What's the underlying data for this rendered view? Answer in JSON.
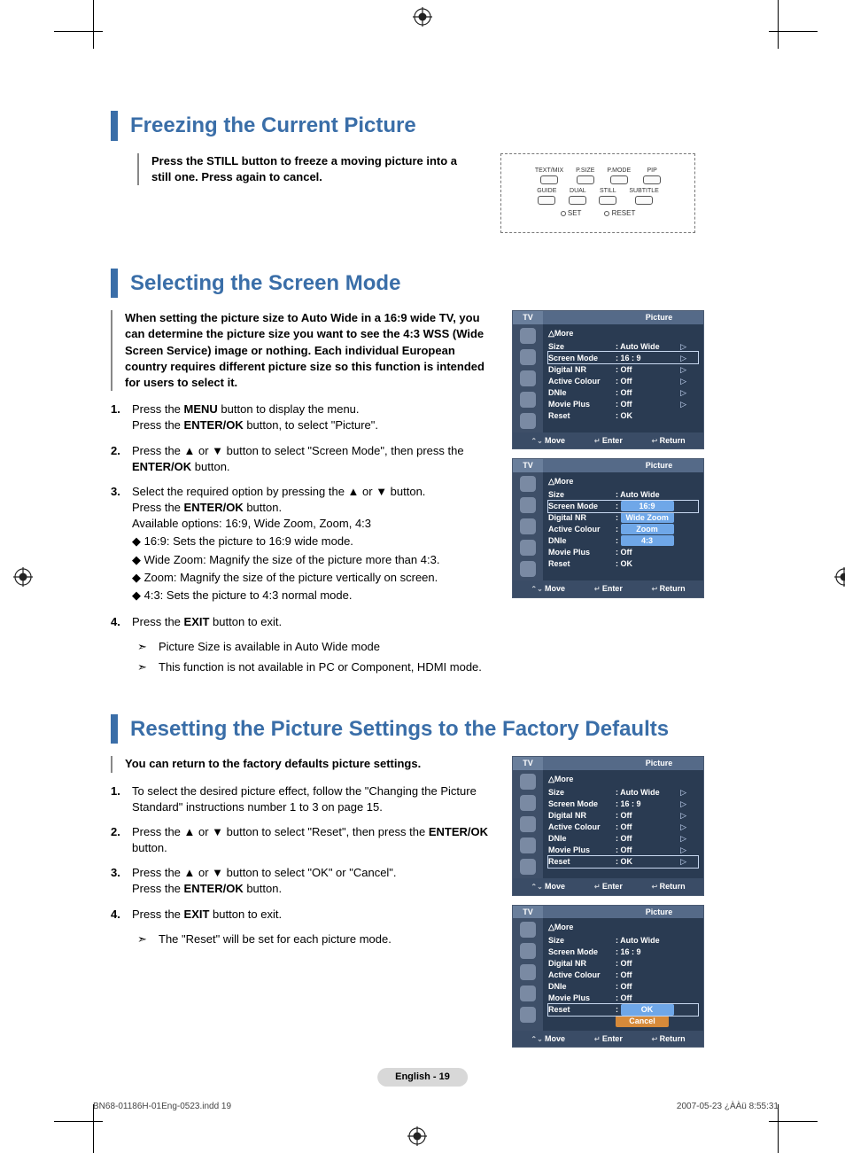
{
  "meta": {
    "page_label": "English - 19",
    "foot_left": "BN68-01186H-01Eng-0523.indd   19",
    "foot_right": "2007-05-23   ¿ÀÀü 8:55:31"
  },
  "remote": {
    "row1": [
      "TEXT/MIX",
      "P.SIZE",
      "P.MODE",
      "PIP"
    ],
    "row2": [
      "GUIDE",
      "DUAL",
      "STILL",
      "SUBTITLE"
    ],
    "row3_left": "SET",
    "row3_right": "RESET"
  },
  "section1": {
    "title": "Freezing the Current Picture",
    "intro": "Press the STILL button to freeze a moving picture into a still one. Press again to cancel."
  },
  "section2": {
    "title": "Selecting the Screen Mode",
    "intro": "When setting the picture size to Auto Wide in a 16:9 wide TV, you can determine the picture size you want to see the 4:3 WSS (Wide Screen Service) image or nothing. Each individual European country requires different picture size so this function is intended for users to select it.",
    "steps": [
      {
        "num": "1.",
        "lines": [
          "Press the <b>MENU</b> button to display the menu.",
          "Press the <b>ENTER/OK</b> button, to select \"Picture\"."
        ]
      },
      {
        "num": "2.",
        "lines": [
          "Press the ▲ or ▼ button to select \"Screen Mode\", then press the <b>ENTER/OK</b> button."
        ]
      },
      {
        "num": "3.",
        "lines": [
          "Select the required option by pressing the ▲ or ▼ button.",
          "Press the <b>ENTER/OK</b> button.",
          "Available options: 16:9, Wide Zoom, Zoom, 4:3"
        ],
        "subs": [
          "16:9: Sets the picture to 16:9 wide mode.",
          "Wide Zoom: Magnify the size of the picture more than 4:3.",
          "Zoom: Magnify the size of the picture vertically on screen.",
          "4:3: Sets the picture to 4:3 normal mode."
        ]
      },
      {
        "num": "4.",
        "lines": [
          "Press the <b>EXIT</b> button to exit."
        ]
      }
    ],
    "notes": [
      "Picture Size is available in Auto Wide mode",
      "This function is not available in PC or Component, HDMI mode."
    ]
  },
  "section3": {
    "title": "Resetting the Picture Settings to the Factory Defaults",
    "intro": "You can return to the factory defaults picture settings.",
    "steps": [
      {
        "num": "1.",
        "lines": [
          "To select the desired picture effect, follow the \"Changing the Picture Standard\" instructions number 1 to 3 on page 15."
        ]
      },
      {
        "num": "2.",
        "lines": [
          "Press the ▲ or ▼ button to select \"Reset\", then press the <b>ENTER/OK</b> button."
        ]
      },
      {
        "num": "3.",
        "lines": [
          "Press the ▲ or ▼ button to select \"OK\" or \"Cancel\".",
          "Press the <b>ENTER/OK</b> button."
        ]
      },
      {
        "num": "4.",
        "lines": [
          "Press the <b>EXIT</b> button to exit."
        ]
      }
    ],
    "notes": [
      "The \"Reset\" will be set for each picture mode."
    ]
  },
  "osd_common": {
    "tv": "TV",
    "title": "Picture",
    "more": "△More",
    "foot_move": "Move",
    "foot_enter": "Enter",
    "foot_return": "Return"
  },
  "osd1": {
    "rows": [
      {
        "lbl": "Size",
        "val": ": Auto Wide",
        "arr": true
      },
      {
        "lbl": "Screen Mode",
        "val": ": 16 : 9",
        "arr": true,
        "sel": true
      },
      {
        "lbl": "Digital NR",
        "val": ": Off",
        "arr": true
      },
      {
        "lbl": "Active Colour",
        "val": ": Off",
        "arr": true
      },
      {
        "lbl": "DNIe",
        "val": ": Off",
        "arr": true
      },
      {
        "lbl": "Movie Plus",
        "val": ": Off",
        "arr": true
      },
      {
        "lbl": "Reset",
        "val": ": OK"
      }
    ]
  },
  "osd2": {
    "rows": [
      {
        "lbl": "Size",
        "val": ": Auto Wide"
      },
      {
        "lbl": "Screen Mode",
        "val": ":",
        "hl": "16:9",
        "sel": true
      },
      {
        "lbl": "Digital NR",
        "val": ":",
        "hl": "Wide Zoom"
      },
      {
        "lbl": "Active Colour",
        "val": ":",
        "hl": "Zoom"
      },
      {
        "lbl": "DNIe",
        "val": ":",
        "hl": "4:3"
      },
      {
        "lbl": "Movie Plus",
        "val": ": Off"
      },
      {
        "lbl": "Reset",
        "val": ": OK"
      }
    ]
  },
  "osd3": {
    "rows": [
      {
        "lbl": "Size",
        "val": ": Auto Wide",
        "arr": true
      },
      {
        "lbl": "Screen Mode",
        "val": ": 16 : 9",
        "arr": true
      },
      {
        "lbl": "Digital NR",
        "val": ": Off",
        "arr": true
      },
      {
        "lbl": "Active Colour",
        "val": ": Off",
        "arr": true
      },
      {
        "lbl": "DNIe",
        "val": ": Off",
        "arr": true
      },
      {
        "lbl": "Movie Plus",
        "val": ": Off",
        "arr": true
      },
      {
        "lbl": "Reset",
        "val": ": OK",
        "arr": true,
        "sel": true
      }
    ]
  },
  "osd4": {
    "rows": [
      {
        "lbl": "Size",
        "val": ": Auto Wide"
      },
      {
        "lbl": "Screen Mode",
        "val": ": 16 : 9"
      },
      {
        "lbl": "Digital NR",
        "val": ": Off"
      },
      {
        "lbl": "Active Colour",
        "val": ": Off"
      },
      {
        "lbl": "DNIe",
        "val": ": Off"
      },
      {
        "lbl": "Movie Plus",
        "val": ": Off"
      },
      {
        "lbl": "Reset",
        "val": ":",
        "hl": "OK",
        "sel": true
      },
      {
        "lbl": "",
        "val": "",
        "hl": "Cancel",
        "hlclass": "orange"
      }
    ]
  }
}
